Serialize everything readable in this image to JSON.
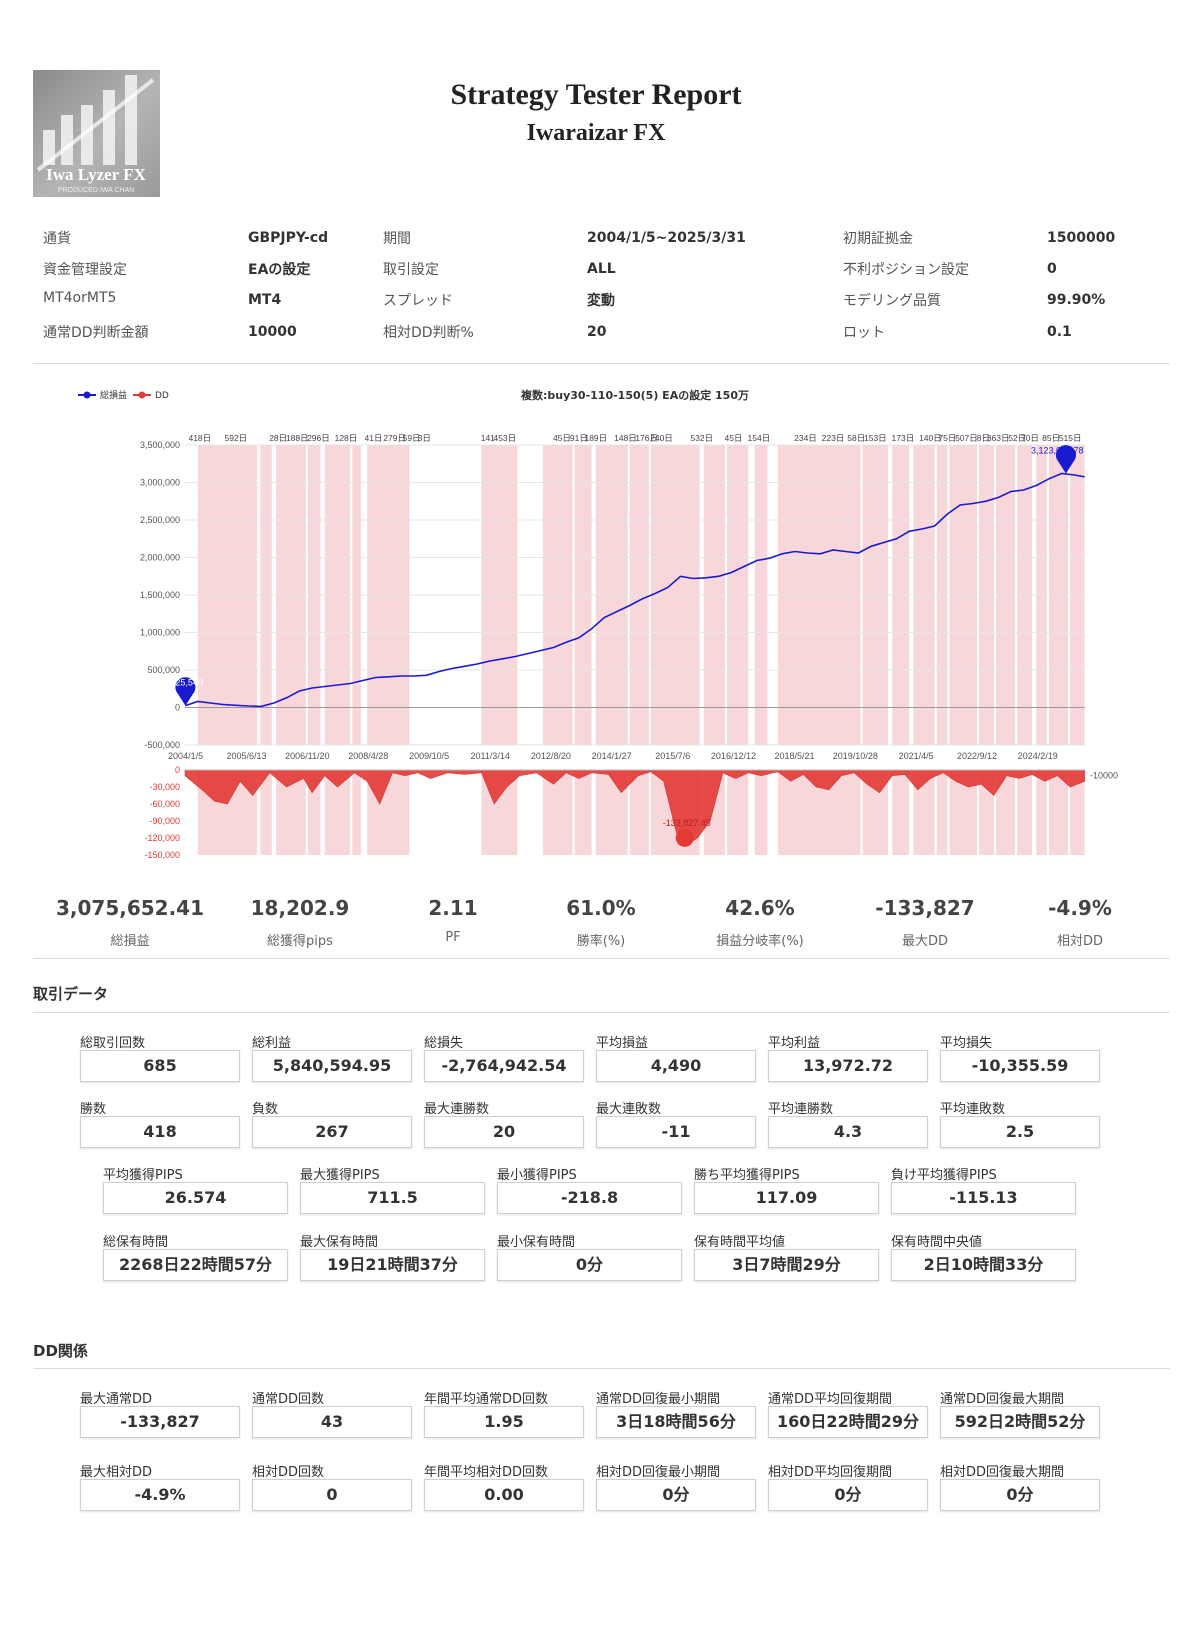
{
  "header": {
    "title": "Strategy Tester Report",
    "subtitle": "Iwaraizar FX",
    "logo_text": "Iwa Lyzer FX",
    "logo_subtext": "PRODUCED IWA CHAN"
  },
  "settings": [
    [
      {
        "label": "通貨",
        "value": "GBPJPY-cd"
      },
      {
        "label": "期間",
        "value": "2004/1/5~2025/3/31"
      },
      {
        "label": "初期証拠金",
        "value": "1500000"
      }
    ],
    [
      {
        "label": "資金管理設定",
        "value": "EAの設定"
      },
      {
        "label": "取引設定",
        "value": "ALL"
      },
      {
        "label": "不利ポジション設定",
        "value": "0"
      }
    ],
    [
      {
        "label": "MT4orMT5",
        "value": "MT4"
      },
      {
        "label": "スプレッド",
        "value": "変動"
      },
      {
        "label": "モデリング品質",
        "value": "99.90%"
      }
    ],
    [
      {
        "label": "通常DD判断金額",
        "value": "10000"
      },
      {
        "label": "相対DD判断%",
        "value": "20"
      },
      {
        "label": "ロット",
        "value": "0.1"
      }
    ]
  ],
  "chart_data": {
    "type": "line",
    "title": "複数:buy30-110-150(5) EAの設定 150万",
    "legend": [
      "総損益",
      "DD"
    ],
    "legend_position": "top-left",
    "x_tick_labels": [
      "2004/1/5",
      "2005/6/13",
      "2006/11/20",
      "2008/4/28",
      "2009/10/5",
      "2011/3/14",
      "2012/8/20",
      "2014/1/27",
      "2015/7/6",
      "2016/12/12",
      "2018/5/21",
      "2019/10/28",
      "2021/4/5",
      "2022/9/12",
      "2024/2/19"
    ],
    "x_range": [
      2004.0,
      2025.25
    ],
    "equity": {
      "name": "総損益",
      "color": "#1a1ad0",
      "ylim": [
        -500000,
        3500000
      ],
      "y_ticks": [
        "3,500,000",
        "3,000,000",
        "2,500,000",
        "2,000,000",
        "1,500,000",
        "1,000,000",
        "500,000",
        "0",
        "-500,000"
      ],
      "x": [
        2004.01,
        2004.3,
        2004.6,
        2004.9,
        2005.2,
        2005.5,
        2005.8,
        2006.1,
        2006.4,
        2006.7,
        2007.0,
        2007.3,
        2007.6,
        2007.9,
        2008.2,
        2008.5,
        2008.8,
        2009.1,
        2009.4,
        2009.7,
        2010.0,
        2010.3,
        2010.6,
        2010.9,
        2011.2,
        2011.5,
        2011.8,
        2012.1,
        2012.4,
        2012.7,
        2013.0,
        2013.3,
        2013.6,
        2013.9,
        2014.2,
        2014.5,
        2014.8,
        2015.1,
        2015.4,
        2015.7,
        2016.0,
        2016.3,
        2016.6,
        2016.9,
        2017.2,
        2017.5,
        2017.8,
        2018.1,
        2018.4,
        2018.7,
        2019.0,
        2019.3,
        2019.6,
        2019.9,
        2020.2,
        2020.5,
        2020.8,
        2021.1,
        2021.4,
        2021.7,
        2022.0,
        2022.3,
        2022.6,
        2022.9,
        2023.2,
        2023.5,
        2023.8,
        2024.1,
        2024.4,
        2024.7,
        2025.0,
        2025.24
      ],
      "y": [
        25540,
        80000,
        60000,
        40000,
        30000,
        20000,
        15000,
        60000,
        130000,
        220000,
        260000,
        280000,
        300000,
        320000,
        360000,
        400000,
        410000,
        420000,
        420000,
        430000,
        480000,
        520000,
        550000,
        580000,
        620000,
        650000,
        680000,
        720000,
        760000,
        800000,
        870000,
        930000,
        1050000,
        1200000,
        1280000,
        1360000,
        1450000,
        1520000,
        1600000,
        1750000,
        1720000,
        1730000,
        1750000,
        1800000,
        1880000,
        1960000,
        1990000,
        2050000,
        2080000,
        2060000,
        2050000,
        2100000,
        2080000,
        2060000,
        2150000,
        2200000,
        2250000,
        2350000,
        2380000,
        2420000,
        2580000,
        2700000,
        2720000,
        2750000,
        2800000,
        2880000,
        2900000,
        2960000,
        3050000,
        3120000,
        3100000,
        3075652
      ],
      "annotations": [
        {
          "x": 2004.01,
          "label": "25,540"
        },
        {
          "x": 2024.8,
          "label": "3,123,028.78"
        }
      ]
    },
    "drawdown": {
      "name": "DD",
      "color": "#e53935",
      "ylim": [
        -150000,
        0
      ],
      "y_ticks": [
        "0",
        "-30,000",
        "-60,000",
        "-90,000",
        "-120,000",
        "-150,000"
      ],
      "threshold_label": "-10000",
      "min_label": "-133,827.45",
      "x": [
        2004.0,
        2004.4,
        2004.7,
        2005.0,
        2005.3,
        2005.6,
        2005.8,
        2006.0,
        2006.4,
        2006.8,
        2007.0,
        2007.3,
        2007.6,
        2008.0,
        2008.3,
        2008.6,
        2008.9,
        2009.2,
        2009.5,
        2009.8,
        2010.2,
        2010.6,
        2011.0,
        2011.3,
        2011.6,
        2011.9,
        2012.3,
        2012.7,
        2013.0,
        2013.3,
        2013.6,
        2014.0,
        2014.3,
        2014.7,
        2015.0,
        2015.3,
        2015.6,
        2015.8,
        2016.1,
        2016.4,
        2016.7,
        2017.0,
        2017.3,
        2017.6,
        2018.0,
        2018.3,
        2018.6,
        2018.9,
        2019.2,
        2019.5,
        2019.8,
        2020.1,
        2020.4,
        2020.7,
        2021.0,
        2021.3,
        2021.6,
        2021.9,
        2022.2,
        2022.5,
        2022.8,
        2023.1,
        2023.4,
        2023.7,
        2024.0,
        2024.3,
        2024.6,
        2024.9,
        2025.24
      ],
      "y": [
        -10000,
        -35000,
        -55000,
        -60000,
        -20000,
        -45000,
        -25000,
        -5000,
        -30000,
        -15000,
        -40000,
        -10000,
        -30000,
        -5000,
        -20000,
        -60000,
        -5000,
        -10000,
        -5000,
        -15000,
        -5000,
        -8000,
        -5000,
        -60000,
        -30000,
        -10000,
        -5000,
        -25000,
        -5000,
        -15000,
        -5000,
        -8000,
        -40000,
        -10000,
        -3000,
        -20000,
        -110000,
        -133827,
        -120000,
        -90000,
        -5000,
        -15000,
        -5000,
        -10000,
        -3000,
        -20000,
        -8000,
        -30000,
        -35000,
        -10000,
        -5000,
        -25000,
        -40000,
        -10000,
        -8000,
        -35000,
        -15000,
        -5000,
        -20000,
        -30000,
        -25000,
        -45000,
        -10000,
        -15000,
        -8000,
        -20000,
        -10000,
        -30000,
        -20000
      ]
    },
    "dd_periods": [
      [
        2004.3,
        2005.7
      ],
      [
        2005.78,
        2006.05
      ],
      [
        2006.15,
        2006.85
      ],
      [
        2006.9,
        2007.2
      ],
      [
        2007.3,
        2007.9
      ],
      [
        2007.95,
        2008.15
      ],
      [
        2008.3,
        2009.3
      ],
      [
        2011.0,
        2011.85
      ],
      [
        2012.45,
        2013.15
      ],
      [
        2013.2,
        2013.6
      ],
      [
        2013.7,
        2014.45
      ],
      [
        2014.5,
        2014.95
      ],
      [
        2015.0,
        2016.15
      ],
      [
        2016.25,
        2016.75
      ],
      [
        2016.8,
        2017.3
      ],
      [
        2017.45,
        2017.75
      ],
      [
        2018.0,
        2018.45
      ],
      [
        2018.45,
        2019.95
      ],
      [
        2020.0,
        2020.6
      ],
      [
        2020.7,
        2021.1
      ],
      [
        2021.2,
        2021.7
      ],
      [
        2021.75,
        2022.0
      ],
      [
        2022.05,
        2022.7
      ],
      [
        2022.75,
        2023.1
      ],
      [
        2023.15,
        2023.6
      ],
      [
        2023.65,
        2024.0
      ],
      [
        2024.1,
        2024.35
      ],
      [
        2024.4,
        2024.85
      ],
      [
        2024.9,
        2025.24
      ]
    ],
    "dd_period_labels": [
      {
        "x": 2004.35,
        "text": "418日"
      },
      {
        "x": 2005.2,
        "text": "592日"
      },
      {
        "x": 2006.2,
        "text": "28日"
      },
      {
        "x": 2006.65,
        "text": "188日"
      },
      {
        "x": 2007.15,
        "text": "296日"
      },
      {
        "x": 2007.8,
        "text": "128日"
      },
      {
        "x": 2008.45,
        "text": "41日"
      },
      {
        "x": 2008.95,
        "text": "279日"
      },
      {
        "x": 2009.35,
        "text": "59日"
      },
      {
        "x": 2009.65,
        "text": "3日"
      },
      {
        "x": 2011.15,
        "text": "141"
      },
      {
        "x": 2011.55,
        "text": "453日"
      },
      {
        "x": 2012.9,
        "text": "45日"
      },
      {
        "x": 2013.3,
        "text": "91日"
      },
      {
        "x": 2013.7,
        "text": "189日"
      },
      {
        "x": 2014.4,
        "text": "148日"
      },
      {
        "x": 2014.9,
        "text": "176日"
      },
      {
        "x": 2015.25,
        "text": "240日"
      },
      {
        "x": 2016.2,
        "text": "532日"
      },
      {
        "x": 2016.95,
        "text": "45日"
      },
      {
        "x": 2017.55,
        "text": "154日"
      },
      {
        "x": 2018.65,
        "text": "234日"
      },
      {
        "x": 2019.3,
        "text": "223日"
      },
      {
        "x": 2019.85,
        "text": "58日"
      },
      {
        "x": 2020.3,
        "text": "153日"
      },
      {
        "x": 2020.95,
        "text": "173日"
      },
      {
        "x": 2021.6,
        "text": "140日"
      },
      {
        "x": 2022.0,
        "text": "75日"
      },
      {
        "x": 2022.45,
        "text": "507日"
      },
      {
        "x": 2022.85,
        "text": "8日"
      },
      {
        "x": 2023.2,
        "text": "363日"
      },
      {
        "x": 2023.65,
        "text": "52日"
      },
      {
        "x": 2023.95,
        "text": "70日"
      },
      {
        "x": 2024.45,
        "text": "85日"
      },
      {
        "x": 2024.9,
        "text": "515日"
      }
    ]
  },
  "kpis": [
    {
      "value": "3,075,652.41",
      "label": "総損益"
    },
    {
      "value": "18,202.9",
      "label": "総獲得pips"
    },
    {
      "value": "2.11",
      "label": "PF"
    },
    {
      "value": "61.0%",
      "label": "勝率(%)"
    },
    {
      "value": "42.6%",
      "label": "損益分岐率(%)"
    },
    {
      "value": "-133,827",
      "label": "最大DD"
    },
    {
      "value": "-4.9%",
      "label": "相対DD"
    }
  ],
  "trade_section": {
    "title": "取引データ",
    "row1": [
      {
        "label": "総取引回数",
        "value": "685"
      },
      {
        "label": "総利益",
        "value": "5,840,594.95"
      },
      {
        "label": "総損失",
        "value": "-2,764,942.54"
      },
      {
        "label": "平均損益",
        "value": "4,490"
      },
      {
        "label": "平均利益",
        "value": "13,972.72"
      },
      {
        "label": "平均損失",
        "value": "-10,355.59"
      }
    ],
    "row2": [
      {
        "label": "勝数",
        "value": "418"
      },
      {
        "label": "負数",
        "value": "267"
      },
      {
        "label": "最大連勝数",
        "value": "20"
      },
      {
        "label": "最大連敗数",
        "value": "-11"
      },
      {
        "label": "平均連勝数",
        "value": "4.3"
      },
      {
        "label": "平均連敗数",
        "value": "2.5"
      }
    ],
    "row3": [
      {
        "label": "平均獲得PIPS",
        "value": "26.574"
      },
      {
        "label": "最大獲得PIPS",
        "value": "711.5"
      },
      {
        "label": "最小獲得PIPS",
        "value": "-218.8"
      },
      {
        "label": "勝ち平均獲得PIPS",
        "value": "117.09"
      },
      {
        "label": "負け平均獲得PIPS",
        "value": "-115.13"
      }
    ],
    "row4": [
      {
        "label": "総保有時間",
        "value": "2268日22時間57分"
      },
      {
        "label": "最大保有時間",
        "value": "19日21時間37分"
      },
      {
        "label": "最小保有時間",
        "value": "0分"
      },
      {
        "label": "保有時間平均値",
        "value": "3日7時間29分"
      },
      {
        "label": "保有時間中央値",
        "value": "2日10時間33分"
      }
    ]
  },
  "dd_section": {
    "title": "DD関係",
    "row1": [
      {
        "label": "最大通常DD",
        "value": "-133,827"
      },
      {
        "label": "通常DD回数",
        "value": "43"
      },
      {
        "label": "年間平均通常DD回数",
        "value": "1.95"
      },
      {
        "label": "通常DD回復最小期間",
        "value": "3日18時間56分"
      },
      {
        "label": "通常DD平均回復期間",
        "value": "160日22時間29分"
      },
      {
        "label": "通常DD回復最大期間",
        "value": "592日2時間52分"
      }
    ],
    "row2": [
      {
        "label": "最大相対DD",
        "value": "-4.9%"
      },
      {
        "label": "相対DD回数",
        "value": "0"
      },
      {
        "label": "年間平均相対DD回数",
        "value": "0.00"
      },
      {
        "label": "相対DD回復最小期間",
        "value": "0分"
      },
      {
        "label": "相対DD平均回復期間",
        "value": "0分"
      },
      {
        "label": "相対DD回復最大期間",
        "value": "0分"
      }
    ]
  }
}
